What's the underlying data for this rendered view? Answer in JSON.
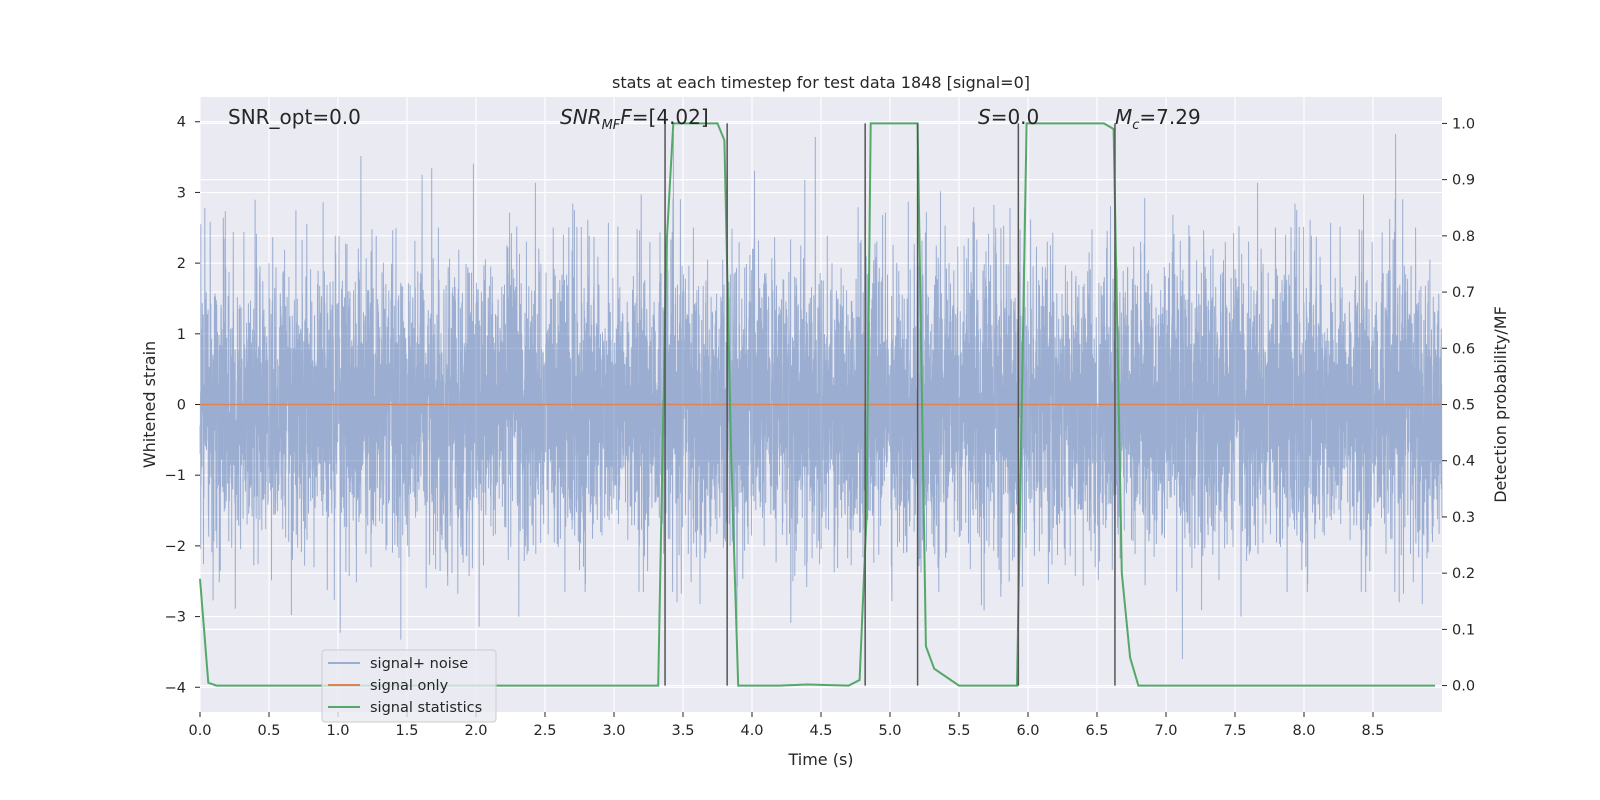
{
  "chart_data": {
    "type": "line",
    "title": "stats at each timestep for test data 1848 [signal=0]",
    "xlabel": "Time (s)",
    "ylabel": "Whitened strain",
    "y2label": "Detection probability/MF",
    "xlim": [
      0,
      9.0
    ],
    "ylim": [
      -4.35,
      4.35
    ],
    "y2lim": [
      -0.047,
      1.047
    ],
    "xticks": [
      "0.0",
      "0.5",
      "1.0",
      "1.5",
      "2.0",
      "2.5",
      "3.0",
      "3.5",
      "4.0",
      "4.5",
      "5.0",
      "5.5",
      "6.0",
      "6.5",
      "7.0",
      "7.5",
      "8.0",
      "8.5"
    ],
    "yticks": [
      "4",
      "3",
      "2",
      "1",
      "0",
      "−1",
      "−2",
      "−3",
      "−4"
    ],
    "y2ticks": [
      "1.0",
      "0.9",
      "0.8",
      "0.7",
      "0.6",
      "0.5",
      "0.4",
      "0.3",
      "0.2",
      "0.1",
      "0.0"
    ],
    "grid": true,
    "legend_position": "lower-left",
    "annotations": {
      "snr_opt": "SNR_opt=0.0",
      "snr_mf_main": "SNR",
      "snr_mf_sub": "MF",
      "snr_mf_value": "=[4.02]",
      "s_main": "S",
      "s_value": "=0.0",
      "mc_main": "M",
      "mc_sub": "c",
      "mc_value": "=7.29"
    },
    "noise_series": {
      "name": "signal+ noise",
      "color": "#4c72b0",
      "sigma": 1.0,
      "n_points": 9000,
      "x_range": [
        0,
        9.0
      ],
      "y_range_shown": [
        -3.6,
        4.0
      ]
    },
    "signal_series": {
      "name": "signal only",
      "color": "#dd8452",
      "x": [
        0,
        9.0
      ],
      "y": [
        0,
        0
      ]
    },
    "stats_series": {
      "name": "signal statistics",
      "color": "#55a868",
      "x": [
        0.0,
        0.06,
        0.12,
        0.5,
        1.0,
        2.0,
        3.0,
        3.32,
        3.38,
        3.43,
        3.5,
        3.6,
        3.75,
        3.8,
        3.85,
        3.9,
        4.0,
        4.2,
        4.4,
        4.7,
        4.78,
        4.83,
        4.86,
        4.9,
        5.0,
        5.1,
        5.2,
        5.26,
        5.32,
        5.5,
        5.7,
        5.85,
        5.92,
        5.99,
        6.05,
        6.2,
        6.4,
        6.55,
        6.62,
        6.68,
        6.74,
        6.8,
        7.0,
        7.5,
        8.0,
        8.5,
        8.95
      ],
      "y": [
        0.19,
        0.005,
        0.0,
        0.0,
        0.0,
        0.0,
        0.0,
        0.0,
        0.78,
        1.0,
        1.0,
        1.0,
        1.0,
        0.97,
        0.4,
        0.0,
        0.0,
        0.0,
        0.002,
        0.0,
        0.01,
        0.3,
        1.0,
        1.0,
        1.0,
        1.0,
        1.0,
        0.07,
        0.03,
        0.0,
        0.0,
        0.0,
        0.0,
        1.0,
        1.0,
        1.0,
        1.0,
        1.0,
        0.99,
        0.2,
        0.05,
        0.0,
        0.0,
        0.0,
        0.0,
        0.0,
        0.0
      ]
    },
    "event_markers": {
      "color": "#555555",
      "x": [
        3.37,
        3.82,
        4.82,
        5.2,
        5.93,
        6.63
      ]
    }
  }
}
